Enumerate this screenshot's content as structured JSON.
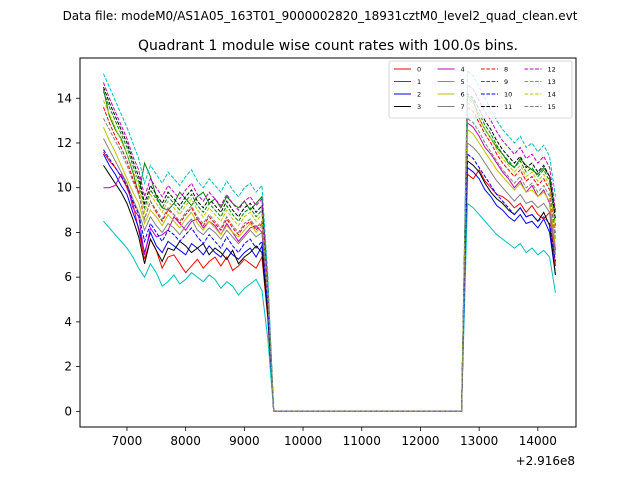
{
  "figure": {
    "suptitle": "Data file: modeM0/AS1A05_163T01_9000002820_18931cztM0_level2_quad_clean.evt",
    "offset_label": "+2.916e8"
  },
  "chart_data": {
    "type": "line",
    "title": "Quadrant 1 module wise count rates with 100.0s bins.",
    "xlabel": "",
    "ylabel": "",
    "x_offset": 291600000,
    "xlim": [
      6200,
      14650
    ],
    "ylim": [
      -0.7,
      15.8
    ],
    "xticks": [
      7000,
      8000,
      9000,
      10000,
      11000,
      12000,
      13000,
      14000
    ],
    "xtick_labels": [
      "7000",
      "8000",
      "9000",
      "10000",
      "11000",
      "12000",
      "13000",
      "14000"
    ],
    "yticks": [
      0,
      2,
      4,
      6,
      8,
      10,
      12,
      14
    ],
    "ytick_labels": [
      "0",
      "2",
      "4",
      "6",
      "8",
      "10",
      "12",
      "14"
    ],
    "legend_position": "top-right",
    "segment_a": {
      "x_start": 6600,
      "x_end": 9300
    },
    "segment_b": {
      "x_start": 12900,
      "x_end": 14300
    },
    "gap_x": [
      9400,
      9500,
      12700,
      12800
    ],
    "series": [
      {
        "name": "0",
        "color": "#ff0000",
        "dash": "solid",
        "a": [
          11.6,
          11.2,
          10.9,
          10.5,
          10.0,
          9.3,
          8.1,
          6.8,
          7.7,
          7.2,
          6.4,
          6.9,
          7.0,
          6.6,
          6.2,
          6.5,
          6.8,
          6.4,
          6.7,
          6.9,
          6.5,
          6.9,
          6.3,
          6.5,
          6.8,
          6.6,
          6.4,
          6.9
        ],
        "b": [
          10.4,
          10.8,
          10.3,
          10.0,
          9.7,
          9.6,
          9.4,
          9.1,
          9.3,
          8.9,
          9.2,
          8.8,
          8.6,
          8.9,
          6.5
        ]
      },
      {
        "name": "1",
        "color": "#008000",
        "dash": "solid",
        "a": [
          14.4,
          13.2,
          12.6,
          12.2,
          11.5,
          10.7,
          9.7,
          11.1,
          10.5,
          9.6,
          9.1,
          9.0,
          9.3,
          9.8,
          9.5,
          9.2,
          9.6,
          9.8,
          9.3,
          9.5,
          9.1,
          9.6,
          9.3,
          9.1,
          9.4,
          9.0,
          9.3,
          9.6
        ],
        "b": [
          13.9,
          13.1,
          12.6,
          12.2,
          11.8,
          11.5,
          11.1,
          10.9,
          11.3,
          11.0,
          10.8,
          10.6,
          10.9,
          10.5,
          8.9
        ]
      },
      {
        "name": "2",
        "color": "#0000ff",
        "dash": "solid",
        "a": [
          11.5,
          11.0,
          10.6,
          10.1,
          9.7,
          8.9,
          8.2,
          7.1,
          8.0,
          7.4,
          7.1,
          7.6,
          7.4,
          7.2,
          7.0,
          7.5,
          7.3,
          7.0,
          7.4,
          7.1,
          6.9,
          7.3,
          7.0,
          6.8,
          7.1,
          7.3,
          6.9,
          7.4
        ],
        "b": [
          10.7,
          10.4,
          9.9,
          9.6,
          9.2,
          9.0,
          8.7,
          8.5,
          8.8,
          8.4,
          8.5,
          8.2,
          8.6,
          8.0,
          6.1
        ]
      },
      {
        "name": "3",
        "color": "#000000",
        "dash": "solid",
        "a": [
          11.0,
          10.6,
          10.2,
          9.8,
          9.3,
          8.6,
          7.8,
          6.6,
          7.7,
          7.2,
          6.7,
          7.3,
          7.2,
          7.6,
          7.4,
          7.1,
          7.3,
          7.5,
          7.0,
          7.3,
          7.1,
          6.8,
          7.2,
          6.6,
          6.9,
          7.1,
          7.4,
          7.1
        ],
        "b": [
          11.0,
          10.7,
          10.2,
          9.8,
          9.5,
          9.3,
          9.0,
          8.8,
          9.1,
          8.7,
          8.8,
          8.5,
          8.9,
          8.3,
          6.1
        ]
      },
      {
        "name": "4",
        "color": "#bf00bf",
        "dash": "solid",
        "a": [
          10.0,
          10.0,
          10.1,
          10.6,
          10.2,
          9.1,
          8.7,
          7.0,
          8.2,
          7.8,
          7.9,
          8.1,
          8.7,
          8.4,
          8.1,
          8.5,
          8.6,
          8.2,
          8.5,
          8.3,
          7.9,
          8.4,
          8.0,
          7.6,
          7.9,
          8.2,
          8.3,
          8.0
        ],
        "b": [
          12.7,
          12.3,
          11.8,
          11.5,
          11.1,
          10.7,
          10.4,
          10.0,
          10.3,
          9.8,
          10.1,
          9.6,
          9.9,
          9.3,
          7.2
        ]
      },
      {
        "name": "5",
        "color": "#00bfbf",
        "dash": "solid",
        "a": [
          8.5,
          8.2,
          7.9,
          7.6,
          7.3,
          6.9,
          6.4,
          6.0,
          6.6,
          6.2,
          5.6,
          5.8,
          6.1,
          5.7,
          5.9,
          6.2,
          6.0,
          5.8,
          6.1,
          5.9,
          5.5,
          5.8,
          5.6,
          5.2,
          5.5,
          5.7,
          5.9,
          5.4
        ],
        "b": [
          9.1,
          8.8,
          8.5,
          8.2,
          7.9,
          7.7,
          7.5,
          7.3,
          7.5,
          7.1,
          7.3,
          7.0,
          7.2,
          6.9,
          5.3
        ]
      },
      {
        "name": "6",
        "color": "#bfbf00",
        "dash": "solid",
        "a": [
          12.7,
          12.1,
          11.6,
          11.0,
          10.4,
          9.8,
          9.3,
          8.4,
          9.0,
          8.7,
          8.3,
          8.8,
          8.5,
          8.2,
          8.6,
          8.9,
          8.4,
          8.1,
          8.5,
          8.2,
          7.9,
          8.3,
          8.0,
          7.8,
          8.1,
          8.4,
          8.0,
          8.3
        ],
        "b": [
          12.4,
          12.0,
          11.6,
          11.2,
          10.8,
          10.5,
          10.2,
          9.9,
          10.2,
          9.8,
          9.9,
          9.6,
          9.8,
          9.4,
          7.4
        ]
      },
      {
        "name": "7",
        "color": "#7f7f7f",
        "dash": "solid",
        "a": [
          12.2,
          11.7,
          11.2,
          10.7,
          10.2,
          9.5,
          8.9,
          8.1,
          8.7,
          8.3,
          8.0,
          8.4,
          8.2,
          7.9,
          8.3,
          8.6,
          8.1,
          7.9,
          8.2,
          8.0,
          7.7,
          8.1,
          7.8,
          7.5,
          7.8,
          8.1,
          7.8,
          8.0
        ],
        "b": [
          11.8,
          11.5,
          11.1,
          10.7,
          10.3,
          10.0,
          9.7,
          9.4,
          9.7,
          9.3,
          9.4,
          9.1,
          9.3,
          8.9,
          7.0
        ]
      },
      {
        "name": "8",
        "color": "#ff0000",
        "dash": "dashed",
        "a": [
          13.6,
          12.9,
          12.3,
          11.8,
          11.2,
          10.4,
          9.8,
          8.6,
          9.4,
          8.9,
          8.5,
          9.0,
          8.8,
          8.4,
          8.8,
          9.1,
          8.6,
          8.3,
          8.7,
          8.4,
          8.1,
          8.6,
          8.2,
          7.9,
          8.3,
          8.5,
          8.1,
          8.4
        ],
        "b": [
          13.4,
          12.9,
          12.4,
          12.0,
          11.5,
          11.1,
          10.8,
          10.5,
          10.8,
          10.3,
          10.5,
          10.1,
          10.4,
          9.9,
          7.9
        ]
      },
      {
        "name": "9",
        "color": "#008000",
        "dash": "dashed",
        "a": [
          14.3,
          13.6,
          13.0,
          12.4,
          11.8,
          11.0,
          10.3,
          9.1,
          9.9,
          9.5,
          9.1,
          9.6,
          9.3,
          9.0,
          9.4,
          9.7,
          9.2,
          8.9,
          9.3,
          9.0,
          8.7,
          9.2,
          8.8,
          8.5,
          8.9,
          9.1,
          8.7,
          9.0
        ],
        "b": [
          13.8,
          13.3,
          12.8,
          12.4,
          11.9,
          11.5,
          11.2,
          10.9,
          11.2,
          10.7,
          10.9,
          10.5,
          10.8,
          10.3,
          8.3
        ]
      },
      {
        "name": "10",
        "color": "#0000ff",
        "dash": "dashed",
        "a": [
          11.7,
          11.3,
          10.9,
          10.5,
          10.1,
          9.4,
          8.8,
          7.6,
          8.4,
          8.0,
          7.6,
          8.1,
          7.9,
          7.6,
          7.9,
          8.2,
          7.8,
          7.5,
          7.9,
          7.6,
          7.3,
          7.8,
          7.4,
          7.1,
          7.5,
          7.7,
          7.3,
          7.6
        ],
        "b": [
          11.3,
          10.9,
          10.5,
          10.1,
          9.7,
          9.4,
          9.1,
          8.8,
          9.1,
          8.7,
          8.8,
          8.5,
          8.7,
          8.4,
          6.7
        ]
      },
      {
        "name": "11",
        "color": "#000000",
        "dash": "dashed",
        "a": [
          14.5,
          13.8,
          13.2,
          12.6,
          12.0,
          11.2,
          10.5,
          9.3,
          10.1,
          9.7,
          9.3,
          9.8,
          9.5,
          9.2,
          9.6,
          9.9,
          9.4,
          9.1,
          9.5,
          9.2,
          8.9,
          9.4,
          9.0,
          8.7,
          9.1,
          9.3,
          8.9,
          9.2
        ],
        "b": [
          14.0,
          13.5,
          13.0,
          12.6,
          12.1,
          11.7,
          11.4,
          11.1,
          11.4,
          10.9,
          11.1,
          10.7,
          11.0,
          10.5,
          8.6
        ]
      },
      {
        "name": "12",
        "color": "#bf00bf",
        "dash": "dashed",
        "a": [
          14.7,
          14.0,
          13.4,
          12.8,
          12.2,
          11.4,
          10.8,
          9.6,
          10.4,
          10.0,
          9.6,
          10.1,
          9.8,
          9.5,
          9.9,
          10.2,
          9.7,
          9.4,
          9.8,
          9.5,
          9.2,
          9.7,
          9.3,
          9.0,
          9.4,
          9.6,
          9.2,
          9.5
        ],
        "b": [
          14.4,
          13.9,
          13.4,
          13.0,
          12.5,
          12.1,
          11.8,
          11.5,
          11.8,
          11.3,
          11.5,
          11.1,
          11.4,
          10.9,
          9.0
        ]
      },
      {
        "name": "13",
        "color": "#00bfbf",
        "dash": "dashed",
        "a": [
          15.1,
          14.5,
          13.9,
          13.3,
          12.7,
          12.0,
          11.3,
          10.2,
          11.0,
          10.6,
          10.2,
          10.7,
          10.4,
          10.1,
          10.5,
          10.8,
          10.3,
          10.0,
          10.4,
          10.1,
          9.8,
          10.3,
          9.9,
          9.6,
          10.0,
          10.2,
          9.8,
          10.1
        ],
        "b": [
          15.0,
          14.5,
          14.0,
          13.5,
          13.0,
          12.6,
          12.3,
          12.0,
          12.3,
          11.8,
          12.0,
          11.6,
          11.9,
          11.4,
          9.6
        ]
      },
      {
        "name": "14",
        "color": "#bfbf00",
        "dash": "dashed",
        "a": [
          13.9,
          13.3,
          12.7,
          12.1,
          11.5,
          10.8,
          10.1,
          8.9,
          9.7,
          9.3,
          8.9,
          9.4,
          9.1,
          8.8,
          9.2,
          9.5,
          9.0,
          8.7,
          9.1,
          8.8,
          8.5,
          9.0,
          8.6,
          8.3,
          8.7,
          8.9,
          8.5,
          8.8
        ],
        "b": [
          13.6,
          13.1,
          12.6,
          12.2,
          11.7,
          11.3,
          11.0,
          10.7,
          11.0,
          10.5,
          10.7,
          10.3,
          10.6,
          10.1,
          8.1
        ]
      },
      {
        "name": "15",
        "color": "#7f7f7f",
        "dash": "dashed",
        "a": [
          13.1,
          12.6,
          12.1,
          11.6,
          11.0,
          10.3,
          9.7,
          8.6,
          9.4,
          9.0,
          8.6,
          9.1,
          8.8,
          8.5,
          8.9,
          9.2,
          8.7,
          8.4,
          8.8,
          8.5,
          8.2,
          8.7,
          8.3,
          8.0,
          8.4,
          8.6,
          8.2,
          8.5
        ],
        "b": [
          12.9,
          12.5,
          12.0,
          11.6,
          11.2,
          10.8,
          10.5,
          10.2,
          10.5,
          10.0,
          10.2,
          9.8,
          10.1,
          9.6,
          7.7
        ]
      }
    ]
  }
}
